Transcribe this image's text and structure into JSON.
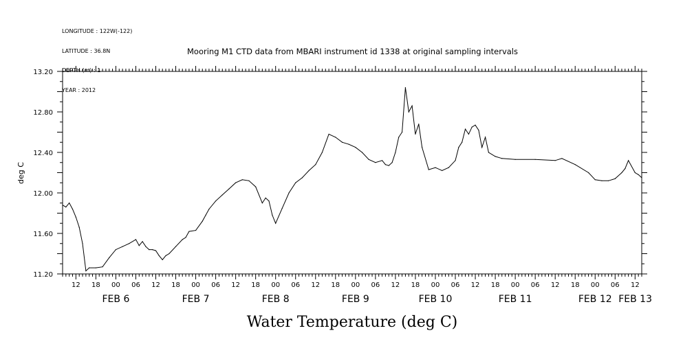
{
  "header": {
    "lines": [
      "LONGITUDE : 122W(-122)",
      "LATITUDE : 36.8N",
      "DEPTH (m) : 1",
      "YEAR : 2012"
    ]
  },
  "chart_data": {
    "type": "line",
    "title": "Mooring M1 CTD data from MBARI instrument id 1338 at original sampling intervals",
    "xlabel": "Water Temperature (deg C)",
    "ylabel": "deg C",
    "ylim": [
      11.2,
      13.2
    ],
    "yticks": [
      "11.20",
      "11.60",
      "12.00",
      "12.40",
      "12.80",
      "13.20"
    ],
    "xlim_hours_labels": "FEB 5 20:00 to FEB 13 02:00",
    "hour_tick_labels": [
      "12",
      "18",
      "00",
      "06",
      "12",
      "18",
      "00",
      "06",
      "12",
      "18",
      "00",
      "06",
      "12",
      "18",
      "00",
      "06",
      "12",
      "18",
      "00",
      "06",
      "12",
      "18",
      "00",
      "06",
      "12",
      "18",
      "00",
      "06",
      "12",
      "18",
      "00"
    ],
    "day_labels": [
      "FEB  6",
      "FEB  7",
      "FEB  8",
      "FEB  9",
      "FEB 10",
      "FEB 11",
      "FEB 12",
      "FEB 13"
    ],
    "grid": false,
    "line_color": "#000000",
    "series": [
      {
        "x": [
          "FEB 5 20:00",
          "FEB 5 21:00",
          "FEB 5 22:00",
          "FEB 5 23:00",
          "FEB 6 00:00",
          "FEB 6 01:00",
          "FEB 6 02:00",
          "FEB 6 03:00",
          "FEB 6 04:00",
          "FEB 6 06:00",
          "FEB 6 08:00",
          "FEB 6 10:00",
          "FEB 6 12:00",
          "FEB 6 14:00",
          "FEB 6 16:00",
          "FEB 6 18:00",
          "FEB 6 19:00",
          "FEB 6 20:00",
          "FEB 6 21:00",
          "FEB 6 22:00",
          "FEB 6 23:00",
          "FEB 7 00:00",
          "FEB 7 01:00",
          "FEB 7 02:00",
          "FEB 7 03:00",
          "FEB 7 04:00",
          "FEB 7 06:00",
          "FEB 7 08:00",
          "FEB 7 09:00",
          "FEB 7 10:00",
          "FEB 7 12:00",
          "FEB 7 14:00",
          "FEB 7 15:00",
          "FEB 7 16:00",
          "FEB 7 18:00",
          "FEB 7 20:00",
          "FEB 7 22:00",
          "FEB 8 00:00",
          "FEB 8 02:00",
          "FEB 8 04:00",
          "FEB 8 06:00",
          "FEB 8 08:00",
          "FEB 8 09:00",
          "FEB 8 10:00",
          "FEB 8 11:00",
          "FEB 8 12:00",
          "FEB 8 14:00",
          "FEB 8 16:00",
          "FEB 8 18:00",
          "FEB 8 20:00",
          "FEB 8 22:00",
          "FEB 9 00:00",
          "FEB 9 02:00",
          "FEB 9 04:00",
          "FEB 9 06:00",
          "FEB 9 08:00",
          "FEB 9 10:00",
          "FEB 9 12:00",
          "FEB 9 14:00",
          "FEB 9 16:00",
          "FEB 9 18:00",
          "FEB 9 20:00",
          "FEB 9 21:00",
          "FEB 9 22:00",
          "FEB 9 23:00",
          "FEB 10 00:00",
          "FEB 10 01:00",
          "FEB 10 02:00",
          "FEB 10 03:00",
          "FEB 10 04:00",
          "FEB 10 05:00",
          "FEB 10 06:00",
          "FEB 10 07:00",
          "FEB 10 08:00",
          "FEB 10 10:00",
          "FEB 10 12:00",
          "FEB 10 14:00",
          "FEB 10 16:00",
          "FEB 10 18:00",
          "FEB 10 19:00",
          "FEB 10 20:00",
          "FEB 10 21:00",
          "FEB 10 22:00",
          "FEB 10 23:00",
          "FEB 11 00:00",
          "FEB 11 01:00",
          "FEB 11 02:00",
          "FEB 11 03:00",
          "FEB 11 04:00",
          "FEB 11 06:00",
          "FEB 11 08:00",
          "FEB 11 12:00",
          "FEB 11 18:00",
          "FEB 12 00:00",
          "FEB 12 02:00",
          "FEB 12 06:00",
          "FEB 12 10:00",
          "FEB 12 12:00",
          "FEB 12 14:00",
          "FEB 12 16:00",
          "FEB 12 18:00",
          "FEB 12 20:00",
          "FEB 12 21:00",
          "FEB 12 22:00",
          "FEB 13 00:00",
          "FEB 13 01:00",
          "FEB 13 02:00"
        ],
        "values": [
          11.88,
          11.86,
          11.9,
          11.84,
          11.76,
          11.66,
          11.5,
          11.23,
          11.26,
          11.26,
          11.27,
          11.36,
          11.44,
          11.47,
          11.5,
          11.54,
          11.48,
          11.52,
          11.47,
          11.44,
          11.44,
          11.43,
          11.38,
          11.34,
          11.38,
          11.4,
          11.47,
          11.54,
          11.56,
          11.62,
          11.63,
          11.72,
          11.78,
          11.84,
          11.92,
          11.98,
          12.04,
          12.1,
          12.13,
          12.12,
          12.06,
          11.9,
          11.95,
          11.92,
          11.78,
          11.7,
          11.85,
          12.0,
          12.1,
          12.15,
          12.22,
          12.28,
          12.4,
          12.58,
          12.55,
          12.5,
          12.48,
          12.45,
          12.4,
          12.33,
          12.3,
          12.32,
          12.28,
          12.27,
          12.3,
          12.4,
          12.55,
          12.6,
          13.04,
          12.8,
          12.86,
          12.58,
          12.68,
          12.45,
          12.23,
          12.25,
          12.22,
          12.25,
          12.32,
          12.45,
          12.5,
          12.63,
          12.58,
          12.65,
          12.67,
          12.62,
          12.45,
          12.55,
          12.4,
          12.36,
          12.34,
          12.33,
          12.33,
          12.32,
          12.34,
          12.28,
          12.2,
          12.13,
          12.12,
          12.12,
          12.14,
          12.2,
          12.24,
          12.32,
          12.2,
          12.18,
          12.15
        ]
      }
    ]
  }
}
